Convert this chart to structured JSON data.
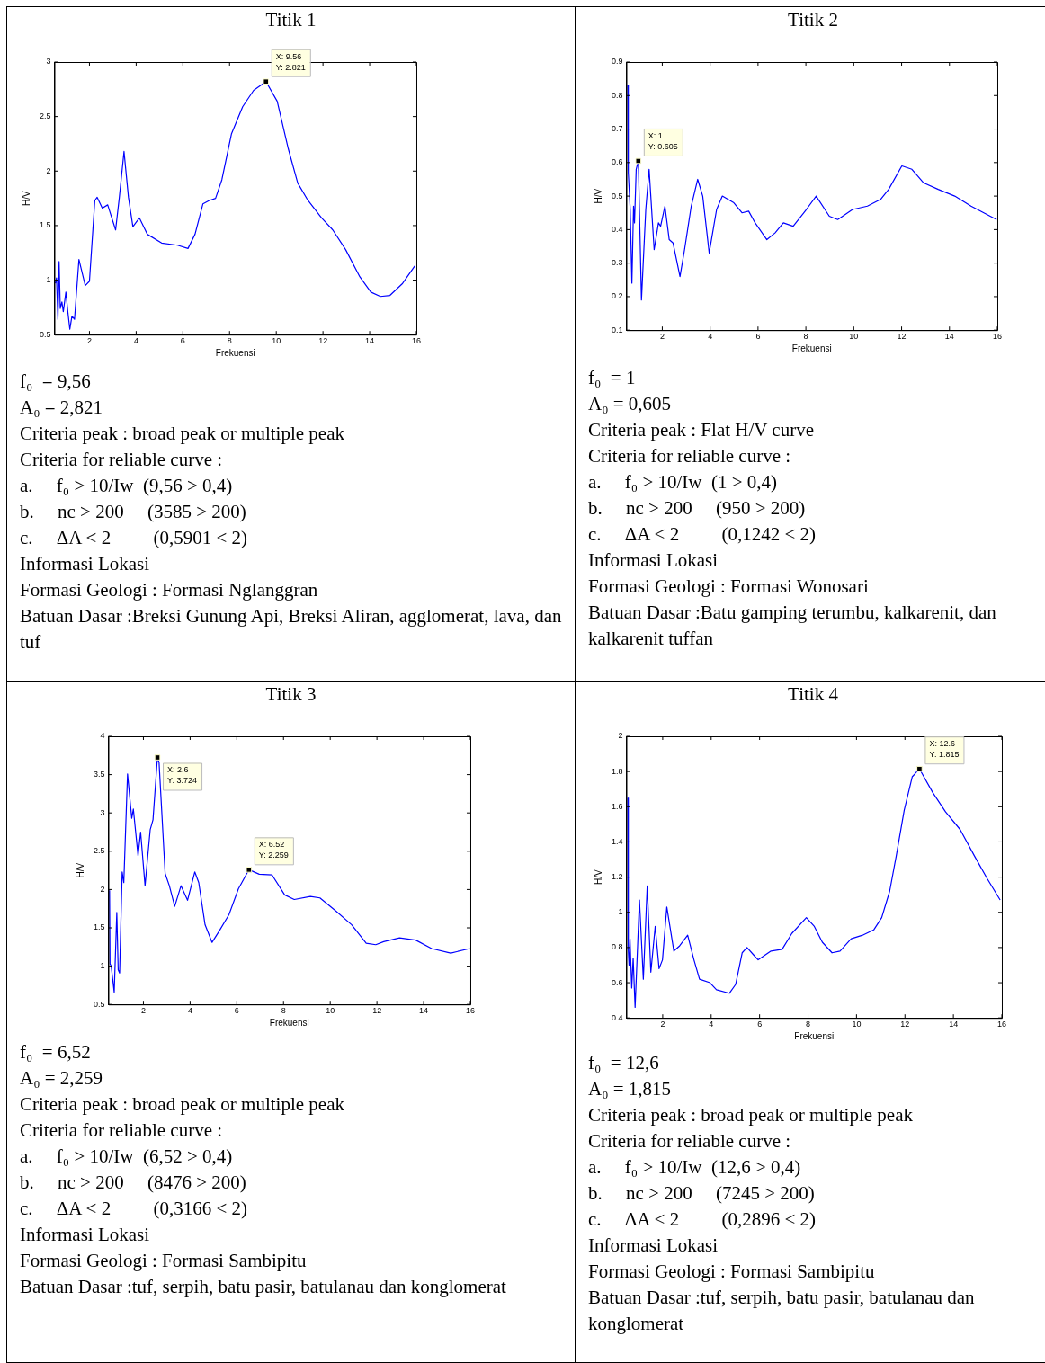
{
  "chart_data": [
    {
      "type": "line",
      "title": "Titik 1",
      "xlabel": "Frekuensi",
      "ylabel": "H/V",
      "xlim": [
        0.5,
        16
      ],
      "ylim": [
        0.5,
        3
      ],
      "xticks": [
        2,
        4,
        6,
        8,
        10,
        12,
        14,
        16
      ],
      "yticks": [
        0.5,
        1,
        1.5,
        2,
        2.5,
        3
      ],
      "series": [
        {
          "type": "line",
          "color": "#0000ff",
          "marker": "none",
          "x": [
            0.54,
            0.59,
            0.65,
            0.7,
            0.75,
            0.82,
            0.88,
            0.99,
            1.08,
            1.16,
            1.25,
            1.36,
            1.55,
            1.82,
            2.0,
            2.23,
            2.33,
            2.55,
            2.78,
            3.12,
            3.28,
            3.48,
            3.67,
            3.86,
            4.14,
            4.48,
            5.09,
            5.77,
            6.22,
            6.52,
            6.86,
            7.13,
            7.4,
            7.67,
            8.08,
            8.56,
            9.03,
            9.56,
            10.04,
            10.52,
            10.92,
            11.33,
            11.94,
            12.42,
            12.97,
            13.58,
            14.05,
            14.46,
            14.87,
            15.41,
            15.93
          ],
          "values": [
            0.97,
            1.02,
            0.64,
            1.17,
            0.74,
            0.8,
            0.71,
            0.89,
            0.7,
            0.55,
            0.67,
            0.64,
            1.19,
            0.95,
            0.99,
            1.73,
            1.76,
            1.66,
            1.69,
            1.46,
            1.76,
            2.18,
            1.76,
            1.49,
            1.57,
            1.42,
            1.34,
            1.32,
            1.29,
            1.42,
            1.7,
            1.73,
            1.75,
            1.92,
            2.34,
            2.59,
            2.74,
            2.821,
            2.64,
            2.2,
            1.89,
            1.74,
            1.57,
            1.46,
            1.28,
            1.03,
            0.89,
            0.85,
            0.86,
            0.97,
            1.13
          ]
        },
        {
          "type": "scatter",
          "color": "#000000",
          "marker": "square",
          "x": [
            9.56
          ],
          "values": [
            2.821
          ]
        }
      ],
      "annotations": [
        {
          "text": "X: 9.56\nY: 2.821",
          "x": 9.56,
          "y": 2.821
        },
        "f₀  = 9,56",
        "A₀ = 2,821",
        "Criteria peak : broad peak or multiple peak",
        "Criteria for reliable curve :",
        "a.     f₀ > 10/Iw  (9,56 > 0,4)",
        "b.     nc > 200     (3585 > 200)",
        "c.     ΔA < 2         (0,5901 < 2)",
        "Informasi Lokasi",
        "Formasi Geologi : Formasi Nglanggran",
        "Batuan Dasar :Breksi Gunung Api, Breksi Aliran, agglomerat, lava, dan tuf"
      ]
    },
    {
      "type": "line",
      "title": "Titik 2",
      "xlabel": "Frekuensi",
      "ylabel": "H/V",
      "xlim": [
        0.5,
        16
      ],
      "ylim": [
        0.1,
        0.9
      ],
      "xticks": [
        2,
        4,
        6,
        8,
        10,
        12,
        14,
        16
      ],
      "yticks": [
        0.1,
        0.2,
        0.3,
        0.4,
        0.5,
        0.6,
        0.7,
        0.8,
        0.9
      ],
      "series": [
        {
          "type": "line",
          "color": "#0000ff",
          "marker": "none",
          "x": [
            0.56,
            0.58,
            0.66,
            0.73,
            0.8,
            0.84,
            0.91,
            1.0,
            1.13,
            1.31,
            1.45,
            1.66,
            1.84,
            1.93,
            2.11,
            2.29,
            2.45,
            2.74,
            2.93,
            3.21,
            3.48,
            3.69,
            3.96,
            4.27,
            4.51,
            4.99,
            5.33,
            5.61,
            5.88,
            6.37,
            6.71,
            7.06,
            7.47,
            8.02,
            8.43,
            8.98,
            9.33,
            9.95,
            10.57,
            11.12,
            11.46,
            12.01,
            12.43,
            12.91,
            13.53,
            14.22,
            14.9,
            15.97
          ],
          "values": [
            0.83,
            0.57,
            0.46,
            0.24,
            0.47,
            0.42,
            0.58,
            0.605,
            0.19,
            0.46,
            0.58,
            0.34,
            0.42,
            0.41,
            0.47,
            0.37,
            0.36,
            0.26,
            0.34,
            0.47,
            0.55,
            0.5,
            0.33,
            0.46,
            0.5,
            0.48,
            0.45,
            0.455,
            0.42,
            0.37,
            0.39,
            0.42,
            0.41,
            0.46,
            0.5,
            0.44,
            0.43,
            0.46,
            0.47,
            0.49,
            0.52,
            0.59,
            0.58,
            0.54,
            0.52,
            0.5,
            0.47,
            0.43
          ]
        },
        {
          "type": "scatter",
          "color": "#000000",
          "marker": "square",
          "x": [
            1
          ],
          "values": [
            0.605
          ]
        }
      ],
      "annotations": [
        {
          "text": "X: 1\nY: 0.605",
          "x": 1,
          "y": 0.605
        },
        "f₀  = 1",
        "A₀ = 0,605",
        "Criteria peak : Flat H/V curve",
        "Criteria for reliable curve :",
        "a.     f₀ > 10/Iw  (1 > 0,4)",
        "b.     nc > 200     (950 > 200)",
        "c.     ΔA < 2         (0,1242 < 2)",
        "Informasi Lokasi",
        "Formasi Geologi : Formasi Wonosari",
        "Batuan Dasar :Batu gamping terumbu, kalkarenit, dan kalkarenit tuffan"
      ]
    },
    {
      "type": "line",
      "title": "Titik 3",
      "xlabel": "Frekuensi",
      "ylabel": "H/V",
      "xlim": [
        0.5,
        16
      ],
      "ylim": [
        0.5,
        4
      ],
      "xticks": [
        2,
        4,
        6,
        8,
        10,
        12,
        14,
        16
      ],
      "yticks": [
        0.5,
        1,
        1.5,
        2,
        2.5,
        3,
        3.5,
        4
      ],
      "series": [
        {
          "type": "line",
          "color": "#0000ff",
          "marker": "none",
          "x": [
            0.55,
            0.57,
            0.62,
            0.75,
            0.86,
            0.92,
            0.98,
            1.09,
            1.16,
            1.32,
            1.5,
            1.57,
            1.77,
            1.88,
            2.07,
            2.29,
            2.41,
            2.6,
            2.67,
            2.93,
            3.11,
            3.34,
            3.61,
            3.89,
            4.2,
            4.37,
            4.64,
            4.94,
            5.25,
            5.66,
            6.07,
            6.52,
            6.96,
            7.51,
            8.05,
            8.46,
            9.15,
            9.56,
            10.24,
            10.92,
            11.54,
            11.95,
            12.29,
            12.97,
            13.66,
            14.34,
            15.16,
            15.98
          ],
          "values": [
            1.99,
            1.03,
            1.0,
            0.66,
            1.7,
            0.95,
            0.91,
            2.23,
            2.09,
            3.51,
            2.93,
            3.05,
            2.44,
            2.75,
            2.05,
            2.78,
            2.91,
            3.724,
            3.66,
            2.21,
            2.05,
            1.78,
            2.05,
            1.86,
            2.23,
            2.09,
            1.54,
            1.31,
            1.46,
            1.67,
            2.01,
            2.259,
            2.2,
            2.19,
            1.93,
            1.87,
            1.91,
            1.89,
            1.72,
            1.54,
            1.3,
            1.28,
            1.32,
            1.37,
            1.34,
            1.23,
            1.17,
            1.23
          ]
        },
        {
          "type": "scatter",
          "color": "#000000",
          "marker": "square",
          "x": [
            2.6,
            6.52
          ],
          "values": [
            3.724,
            2.259
          ]
        }
      ],
      "annotations": [
        {
          "text": "X: 2.6\nY: 3.724",
          "x": 2.6,
          "y": 3.724
        },
        {
          "text": "X: 6.52\nY: 2.259",
          "x": 6.52,
          "y": 2.259
        },
        "f₀  = 6,52",
        "A₀ = 2,259",
        "Criteria peak : broad peak or multiple peak",
        "Criteria for reliable curve :",
        "a.     f₀ > 10/Iw  (6,52 > 0,4)",
        "b.     nc > 200     (8476 > 200)",
        "c.     ΔA < 2         (0,3166 < 2)",
        "Informasi Lokasi",
        "Formasi Geologi : Formasi Sambipitu",
        "Batuan Dasar :tuf, serpih, batu pasir, batulanau dan konglomerat"
      ]
    },
    {
      "type": "line",
      "title": "Titik 4",
      "xlabel": "Frekuensi",
      "ylabel": "H/V",
      "xlim": [
        0.5,
        16
      ],
      "ylim": [
        0.4,
        2
      ],
      "xticks": [
        2,
        4,
        6,
        8,
        10,
        12,
        14,
        16
      ],
      "yticks": [
        0.4,
        0.6,
        0.8,
        1,
        1.2,
        1.4,
        1.6,
        1.8,
        2
      ],
      "series": [
        {
          "type": "line",
          "color": "#0000ff",
          "marker": "none",
          "x": [
            0.56,
            0.58,
            0.61,
            0.65,
            0.72,
            0.78,
            0.86,
            1.04,
            1.2,
            1.36,
            1.51,
            1.69,
            1.85,
            1.99,
            2.17,
            2.46,
            2.7,
            3.03,
            3.29,
            3.52,
            3.95,
            4.22,
            4.75,
            5.01,
            5.28,
            5.48,
            5.74,
            5.94,
            6.47,
            6.93,
            7.33,
            7.93,
            8.26,
            8.59,
            8.99,
            9.32,
            9.78,
            10.25,
            10.71,
            11.04,
            11.37,
            11.64,
            11.97,
            12.3,
            12.6,
            13.15,
            13.68,
            14.28,
            14.87,
            15.4,
            15.93
          ],
          "values": [
            1.65,
            0.78,
            0.7,
            0.85,
            0.57,
            0.74,
            0.46,
            1.07,
            0.62,
            1.15,
            0.66,
            0.92,
            0.68,
            0.73,
            1.03,
            0.78,
            0.81,
            0.87,
            0.73,
            0.62,
            0.6,
            0.56,
            0.54,
            0.59,
            0.77,
            0.8,
            0.76,
            0.73,
            0.78,
            0.79,
            0.88,
            0.97,
            0.92,
            0.83,
            0.77,
            0.78,
            0.85,
            0.87,
            0.9,
            0.97,
            1.12,
            1.32,
            1.58,
            1.77,
            1.815,
            1.68,
            1.57,
            1.47,
            1.32,
            1.19,
            1.07
          ]
        },
        {
          "type": "scatter",
          "color": "#000000",
          "marker": "square",
          "x": [
            12.6
          ],
          "values": [
            1.815
          ]
        }
      ],
      "annotations": [
        {
          "text": "X: 12.6\nY: 1.815",
          "x": 12.6,
          "y": 1.815
        },
        "f₀  = 12,6",
        "A₀ = 1,815",
        "Criteria peak : broad peak or multiple peak",
        "Criteria for reliable curve :",
        "a.     f₀ > 10/Iw  (12,6 > 0,4)",
        "b.     nc > 200     (7245 > 200)",
        "c.     ΔA < 2         (0,2896 < 2)",
        "Informasi Lokasi",
        "Formasi Geologi : Formasi Sambipitu",
        "Batuan Dasar :tuf, serpih, batu pasir, batulanau dan konglomerat"
      ]
    }
  ]
}
